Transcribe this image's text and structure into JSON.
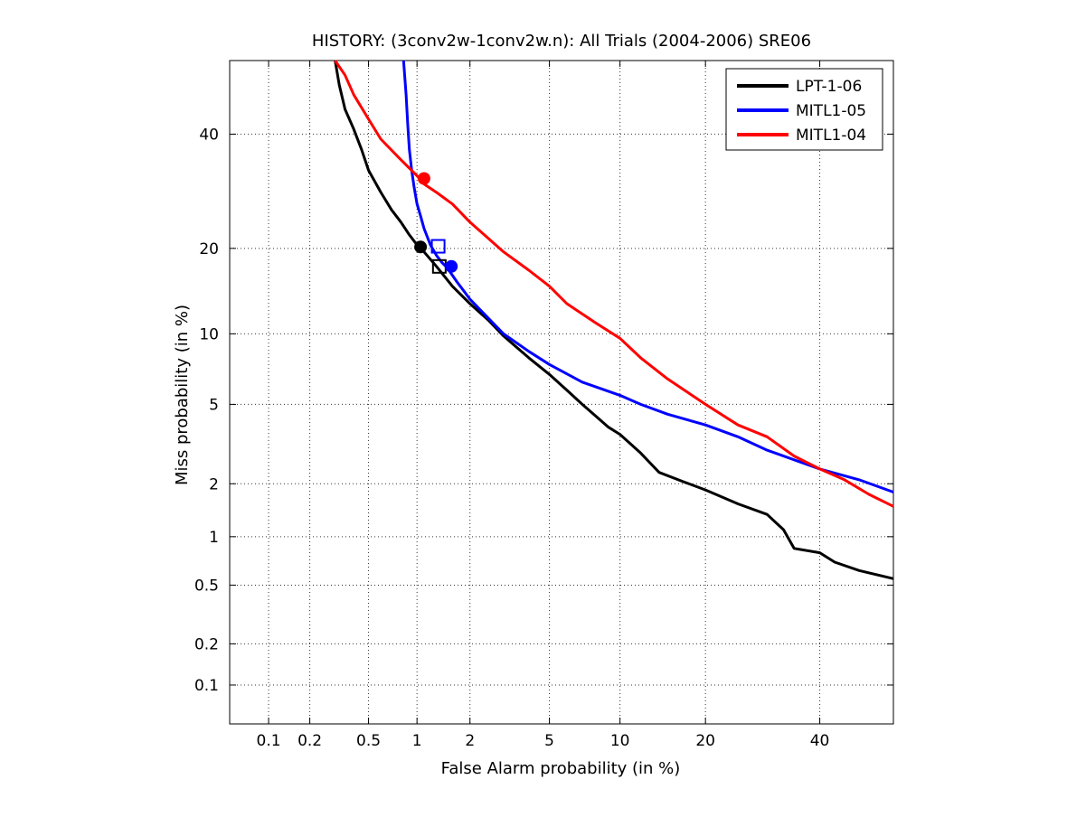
{
  "chart_data": {
    "type": "line",
    "subtype": "DET",
    "title": "HISTORY: (3conv2w-1conv2w.n): All Trials (2004-2006) SRE06",
    "xlabel": "False Alarm probability (in %)",
    "ylabel": "Miss probability (in %)",
    "xlim": [
      0.05,
      55
    ],
    "ylim": [
      0.05,
      55
    ],
    "scale": "probit",
    "grid": true,
    "legend_position": "top-right",
    "xticks": [
      {
        "value": 0.1,
        "label": "0.1"
      },
      {
        "value": 0.2,
        "label": "0.2"
      },
      {
        "value": 0.5,
        "label": "0.5"
      },
      {
        "value": 1,
        "label": "1"
      },
      {
        "value": 2,
        "label": "2"
      },
      {
        "value": 5,
        "label": "5"
      },
      {
        "value": 10,
        "label": "10"
      },
      {
        "value": 20,
        "label": "20"
      },
      {
        "value": 40,
        "label": "40"
      }
    ],
    "yticks": [
      {
        "value": 0.1,
        "label": "0.1"
      },
      {
        "value": 0.2,
        "label": "0.2"
      },
      {
        "value": 0.5,
        "label": "0.5"
      },
      {
        "value": 1,
        "label": "1"
      },
      {
        "value": 2,
        "label": "2"
      },
      {
        "value": 5,
        "label": "5"
      },
      {
        "value": 10,
        "label": "10"
      },
      {
        "value": 20,
        "label": "20"
      },
      {
        "value": 40,
        "label": "40"
      }
    ],
    "series": [
      {
        "name": "LPT-1-06",
        "color": "#000000",
        "x": [
          0.3,
          0.32,
          0.35,
          0.4,
          0.45,
          0.5,
          0.6,
          0.7,
          0.8,
          0.9,
          1.0,
          1.1,
          1.3,
          1.6,
          2.0,
          2.5,
          3.0,
          4.0,
          5.0,
          6.0,
          7.0,
          8.0,
          9.0,
          10.0,
          12.0,
          14.0,
          17.0,
          20.0,
          25.0,
          30.0,
          33.0,
          35.0,
          40.0,
          43.0,
          48.0,
          55.0
        ],
        "y": [
          55,
          50,
          45,
          41,
          37,
          33,
          29,
          26,
          24,
          22,
          20.5,
          19.5,
          17.5,
          15,
          13,
          11.3,
          9.8,
          8,
          6.8,
          5.8,
          5,
          4.4,
          3.9,
          3.6,
          2.9,
          2.3,
          2.05,
          1.85,
          1.55,
          1.35,
          1.1,
          0.85,
          0.8,
          0.7,
          0.62,
          0.55
        ]
      },
      {
        "name": "MITL1-05",
        "color": "#0000ff",
        "x": [
          0.83,
          0.86,
          0.88,
          0.9,
          0.93,
          0.96,
          1.0,
          1.05,
          1.1,
          1.2,
          1.3,
          1.4,
          1.5,
          1.7,
          2.0,
          2.5,
          3.0,
          4.0,
          5.0,
          7.0,
          10.0,
          12.0,
          15.0,
          20.0,
          25.0,
          30.0,
          40.0,
          48.0,
          55.0
        ],
        "y": [
          55,
          48,
          42,
          37,
          33,
          30,
          27,
          25,
          23,
          20.5,
          19,
          18,
          17.3,
          15.5,
          13.5,
          11.5,
          10,
          8.5,
          7.5,
          6.3,
          5.5,
          5,
          4.5,
          4.0,
          3.5,
          3.0,
          2.4,
          2.1,
          1.8
        ]
      },
      {
        "name": "MITL1-04",
        "color": "#ff0000",
        "x": [
          0.3,
          0.35,
          0.4,
          0.5,
          0.6,
          0.8,
          1.0,
          1.1,
          1.3,
          1.6,
          2.0,
          2.5,
          3.0,
          4.0,
          5.0,
          6.0,
          8.0,
          10.0,
          12.0,
          15.0,
          20.0,
          25.0,
          30.0,
          35.0,
          40.0,
          45.0,
          50.0,
          55.0
        ],
        "y": [
          55,
          52,
          48,
          43,
          39,
          35,
          32,
          30.5,
          29,
          27,
          24,
          21.5,
          19.5,
          17,
          15,
          13,
          11,
          9.6,
          8,
          6.5,
          5,
          4,
          3.5,
          2.8,
          2.4,
          2.1,
          1.75,
          1.5
        ]
      }
    ],
    "markers": [
      {
        "series": "LPT-1-06",
        "shape": "circle",
        "x": 1.05,
        "y": 20.2
      },
      {
        "series": "LPT-1-06",
        "shape": "square",
        "x": 1.35,
        "y": 17.5
      },
      {
        "series": "MITL1-05",
        "shape": "circle",
        "x": 1.58,
        "y": 17.5
      },
      {
        "series": "MITL1-05",
        "shape": "square",
        "x": 1.33,
        "y": 20.3
      },
      {
        "series": "MITL1-04",
        "shape": "circle",
        "x": 1.1,
        "y": 31.5
      }
    ]
  }
}
